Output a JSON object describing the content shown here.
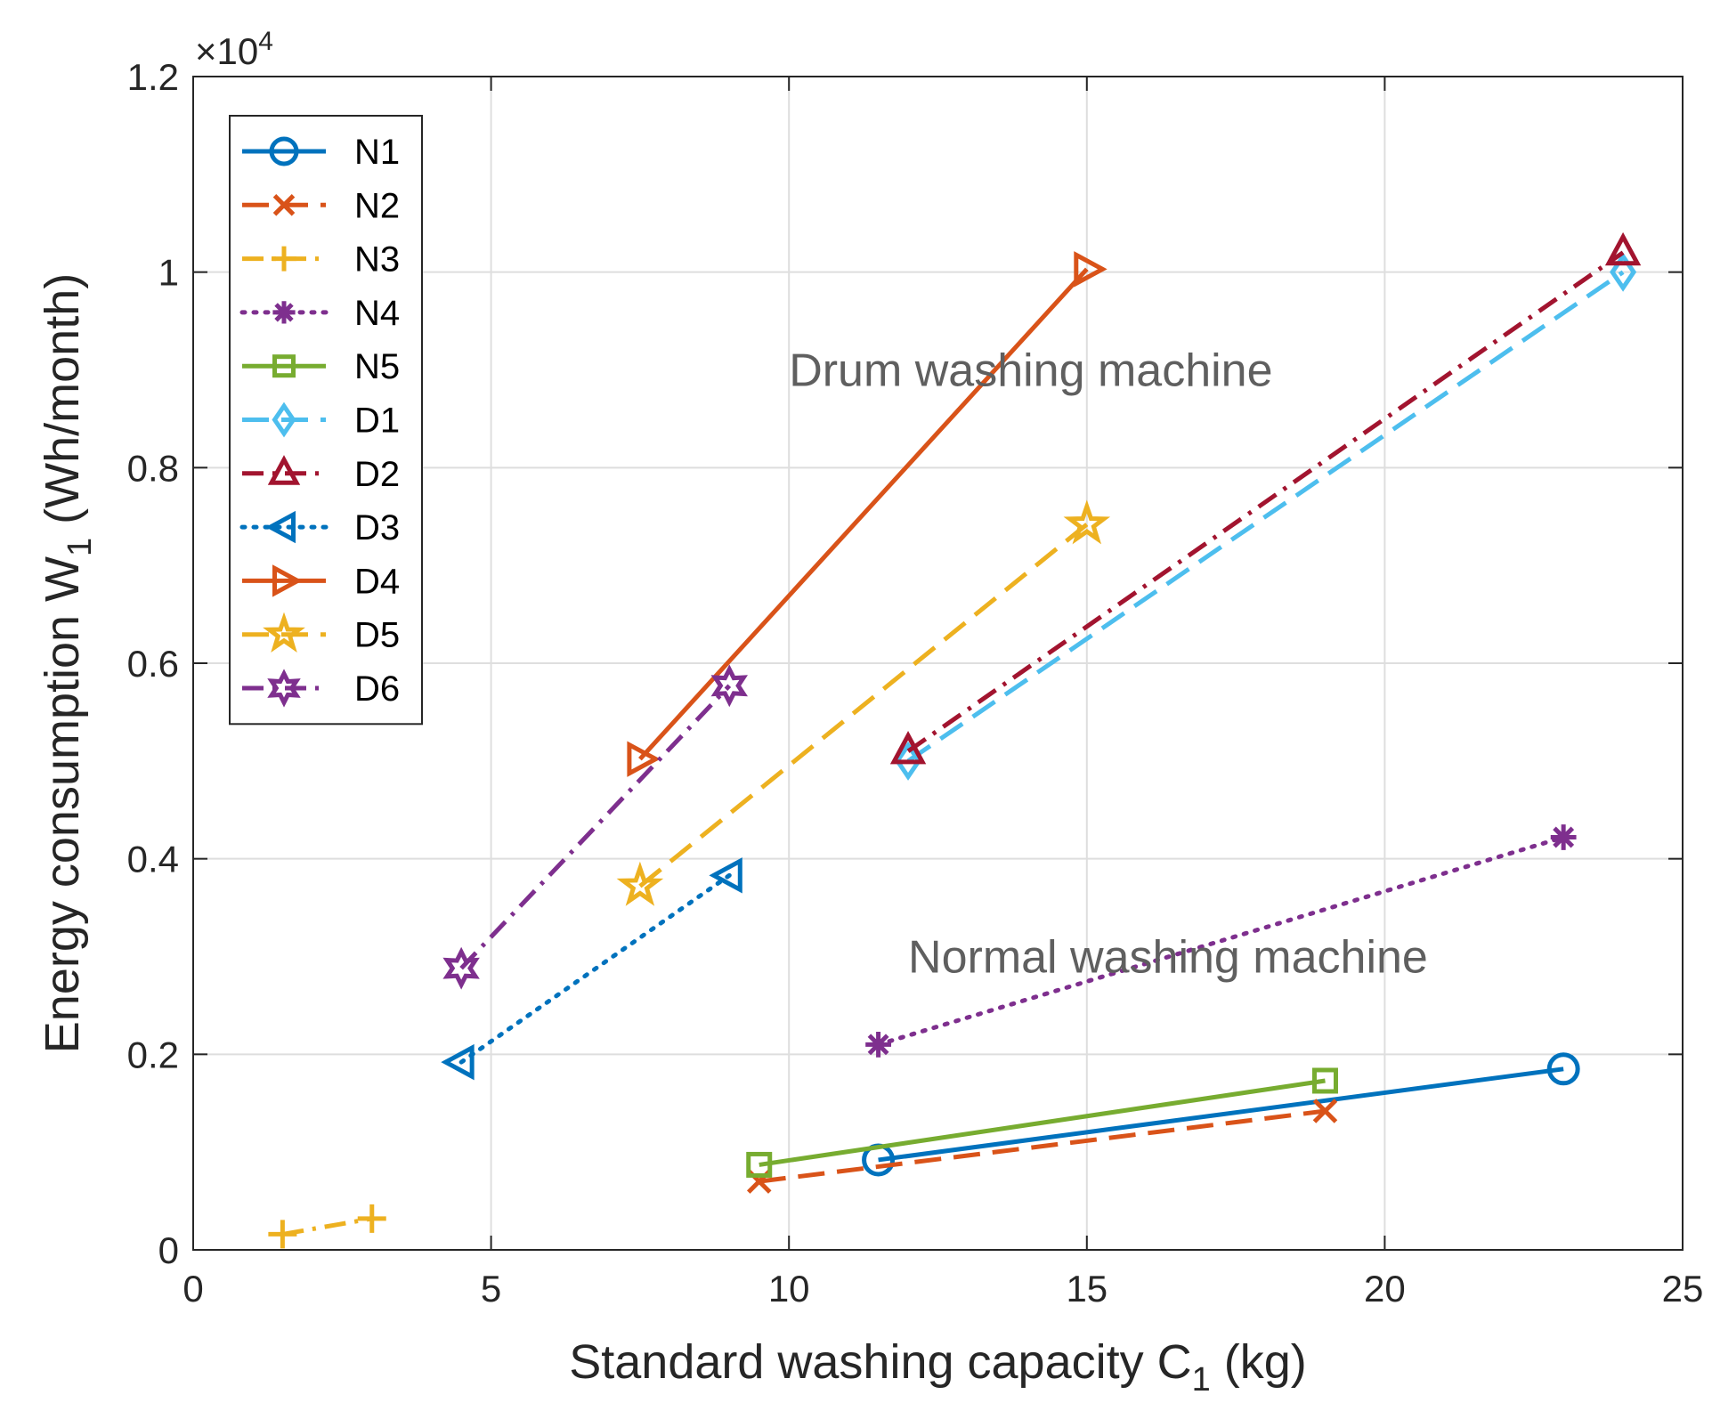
{
  "chart_data": {
    "type": "line",
    "title": "",
    "xlabel": "Standard washing capacity C",
    "xlabel_sub": "1",
    "xlabel_unit": " (kg)",
    "ylabel": "Energy consumption W",
    "ylabel_sub": "1",
    "ylabel_unit": " (Wh/month)",
    "y_exponent_prefix": "×10",
    "y_exponent_power": "4",
    "xlim": [
      0,
      25
    ],
    "ylim": [
      0,
      1.2
    ],
    "xticks": [
      0,
      5,
      10,
      15,
      20,
      25
    ],
    "xtick_labels": [
      "0",
      "5",
      "10",
      "15",
      "20",
      "25"
    ],
    "yticks": [
      0,
      0.2,
      0.4,
      0.6,
      0.8,
      1,
      1.2
    ],
    "ytick_labels": [
      "0",
      "0.2",
      "0.4",
      "0.6",
      "0.8",
      "1",
      "1.2"
    ],
    "grid": true,
    "legend_position": "top-left",
    "annotations": [
      {
        "text": "Drum washing machine",
        "x": 10,
        "y": 0.9
      },
      {
        "text": "Normal washing machine",
        "x": 12,
        "y": 0.3
      }
    ],
    "series": [
      {
        "name": "N1",
        "color": "#0072BD",
        "dash": "solid",
        "marker": "circle",
        "x": [
          11.5,
          23
        ],
        "y": [
          0.092,
          0.185
        ]
      },
      {
        "name": "N2",
        "color": "#D95319",
        "dash": "dashed",
        "marker": "x",
        "x": [
          9.5,
          19
        ],
        "y": [
          0.07,
          0.142
        ]
      },
      {
        "name": "N3",
        "color": "#EDB120",
        "dash": "dashdot",
        "marker": "plus",
        "x": [
          1.5,
          3
        ],
        "y": [
          0.016,
          0.032
        ]
      },
      {
        "name": "N4",
        "color": "#7E2F8E",
        "dash": "dotted",
        "marker": "asterisk",
        "x": [
          11.5,
          23
        ],
        "y": [
          0.21,
          0.422
        ]
      },
      {
        "name": "N5",
        "color": "#77AC30",
        "dash": "solid",
        "marker": "square",
        "x": [
          9.5,
          19
        ],
        "y": [
          0.087,
          0.173
        ]
      },
      {
        "name": "D1",
        "color": "#4DBEEE",
        "dash": "dashed",
        "marker": "diamond",
        "x": [
          12,
          24
        ],
        "y": [
          0.5,
          1.0
        ]
      },
      {
        "name": "D2",
        "color": "#A2142F",
        "dash": "dashdot",
        "marker": "triangle-up",
        "x": [
          12,
          24
        ],
        "y": [
          0.51,
          1.02
        ]
      },
      {
        "name": "D3",
        "color": "#0072BD",
        "dash": "dotted",
        "marker": "triangle-left",
        "x": [
          4.5,
          9
        ],
        "y": [
          0.192,
          0.383
        ]
      },
      {
        "name": "D4",
        "color": "#D95319",
        "dash": "solid",
        "marker": "triangle-right",
        "x": [
          7.5,
          15
        ],
        "y": [
          0.502,
          1.003
        ]
      },
      {
        "name": "D5",
        "color": "#EDB120",
        "dash": "dashed",
        "marker": "pentagram",
        "x": [
          7.5,
          15
        ],
        "y": [
          0.372,
          0.742
        ]
      },
      {
        "name": "D6",
        "color": "#7E2F8E",
        "dash": "dashdot",
        "marker": "hexagram",
        "x": [
          4.5,
          9
        ],
        "y": [
          0.288,
          0.577
        ]
      }
    ]
  }
}
